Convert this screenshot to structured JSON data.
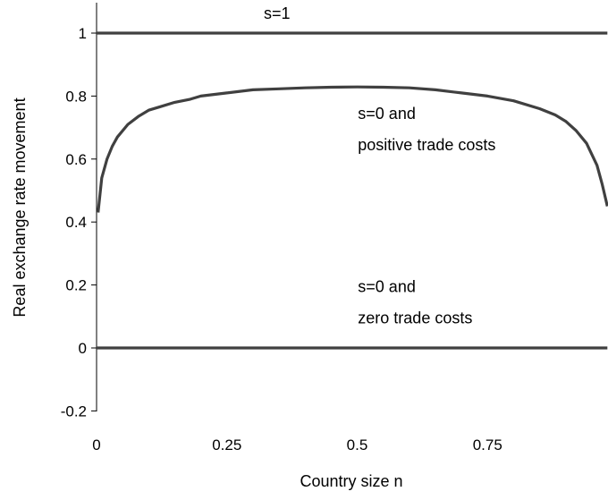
{
  "chart_data": {
    "type": "line",
    "title": "",
    "xlabel": "Country size n",
    "ylabel": "Real exchange rate movement",
    "xlim": [
      0,
      0.98
    ],
    "ylim": [
      -0.2,
      1.1
    ],
    "x_ticks": [
      0,
      0.25,
      0.5,
      0.75
    ],
    "x_tick_labels": [
      "0",
      "0.25",
      "0.5",
      "0.75"
    ],
    "y_ticks": [
      -0.2,
      0,
      0.2,
      0.4,
      0.6,
      0.8,
      1
    ],
    "y_tick_labels": [
      "-0.2",
      "0",
      "0.2",
      "0.4",
      "0.6",
      "0.8",
      "1"
    ],
    "grid": false,
    "legend": "none",
    "line_color": "#404040",
    "series": [
      {
        "x": [
          0,
          0.98
        ],
        "y": [
          1,
          1
        ]
      },
      {
        "x": [
          0.003,
          0.01,
          0.02,
          0.03,
          0.04,
          0.06,
          0.08,
          0.1,
          0.12,
          0.15,
          0.18,
          0.2,
          0.25,
          0.3,
          0.35,
          0.4,
          0.45,
          0.5,
          0.55,
          0.6,
          0.65,
          0.7,
          0.75,
          0.8,
          0.85,
          0.88,
          0.9,
          0.92,
          0.94,
          0.96,
          0.97,
          0.98
        ],
        "y": [
          0.43,
          0.54,
          0.6,
          0.64,
          0.67,
          0.71,
          0.735,
          0.755,
          0.765,
          0.78,
          0.79,
          0.8,
          0.81,
          0.82,
          0.823,
          0.826,
          0.828,
          0.829,
          0.828,
          0.826,
          0.82,
          0.81,
          0.8,
          0.785,
          0.76,
          0.74,
          0.72,
          0.69,
          0.65,
          0.58,
          0.52,
          0.45
        ]
      },
      {
        "x": [
          0,
          0.98
        ],
        "y": [
          0,
          0
        ]
      }
    ],
    "annotations": [
      {
        "text": "s=1",
        "x": 0.53,
        "y": 1.05
      },
      {
        "text": "s=0 and",
        "x": 0.63,
        "y": 0.745
      },
      {
        "text": "positive trade costs",
        "x": 0.63,
        "y": 0.645
      },
      {
        "text": "s=0 and",
        "x": 0.63,
        "y": 0.195
      },
      {
        "text": "zero trade costs",
        "x": 0.63,
        "y": 0.095
      }
    ]
  }
}
